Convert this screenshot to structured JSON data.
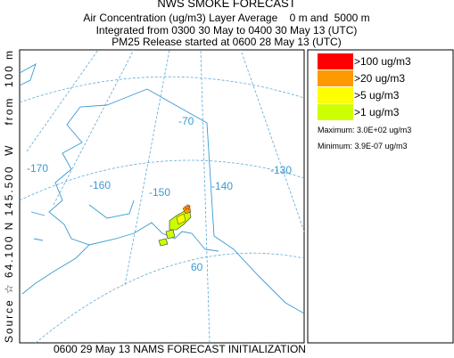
{
  "header": {
    "title": "NWS SMOKE FORECAST",
    "line1": "Air Concentration (ug/m3) Layer Average    0 m and  5000 m",
    "line2": "Integrated from 0300 30 May to 0400 30 May 13 (UTC)",
    "line3": "PM25 Release started at 0600 28 May 13 (UTC)"
  },
  "side_label": "Source ☆ 64.100 N 145.500  W    from  100 m",
  "map": {
    "labels": [
      "-70",
      "-170",
      "-160",
      "-150",
      "-140",
      "-130",
      "60"
    ]
  },
  "legend": {
    "items": [
      {
        "label": ">100 ug/m3",
        "color": "#ff0000"
      },
      {
        "label": ">20 ug/m3",
        "color": "#ff9900"
      },
      {
        "label": ">5 ug/m3",
        "color": "#ffff00"
      },
      {
        "label": ">1 ug/m3",
        "color": "#ccff00"
      }
    ],
    "maximum": "Maximum: 3.0E+02 ug/m3",
    "minimum": "Minimum: 3.9E-07 ug/m3"
  },
  "footer": "0600 29 May 13 NAMS FORECAST INITIALIZATION"
}
